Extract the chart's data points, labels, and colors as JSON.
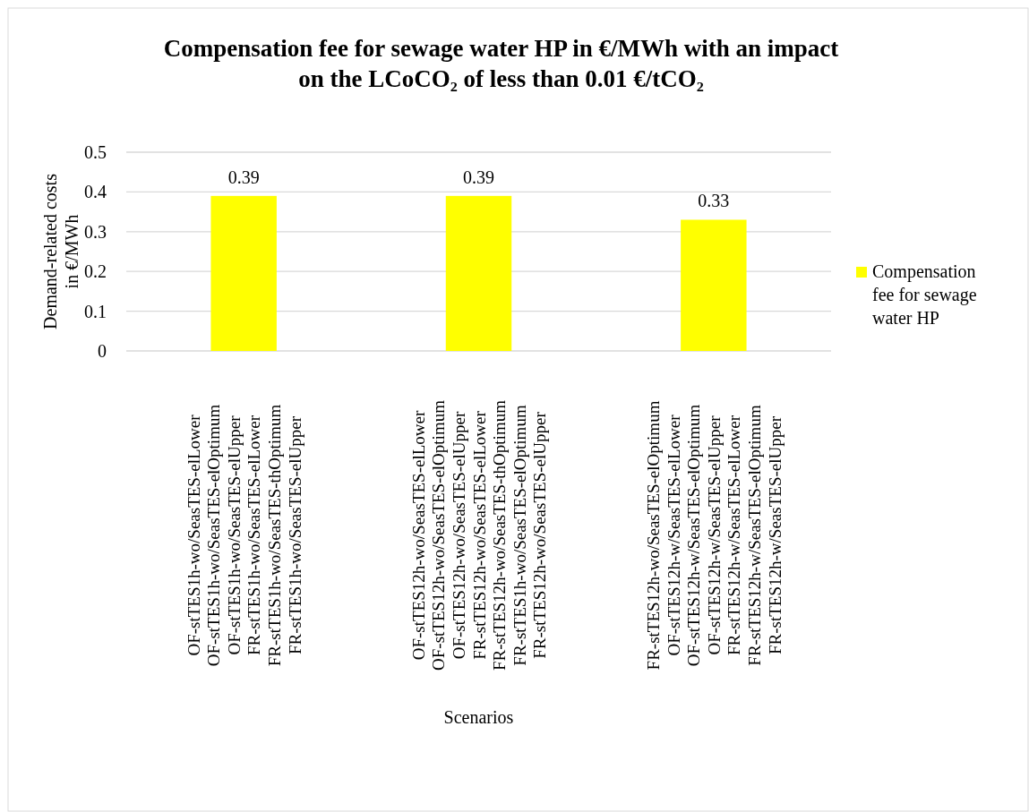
{
  "chart_data": {
    "type": "bar",
    "title": "Compensation fee for sewage water HP in €/MWh with an impact\non the LCoCO₂ of less than 0.01 €/tCO₂",
    "xlabel": "Scenarios",
    "ylabel": "Demand-related costs\nin €/MWh",
    "categories": [
      "OF-stTES1h-wo/SeasTES-elLower\nOF-stTES1h-wo/SeasTES-elOptimum\nOF-stTES1h-wo/SeasTES-elUpper\nFR-stTES1h-wo/SeasTES-elLower\nFR-stTES1h-wo/SeasTES-thOptimum\nFR-stTES1h-wo/SeasTES-elUpper",
      "OF-stTES12h-wo/SeasTES-elLower\nOF-stTES12h-wo/SeasTES-elOptimum\nOF-stTES12h-wo/SeasTES-elUpper\nFR-stTES12h-wo/SeasTES-elLower\nFR-stTES12h-wo/SeasTES-thOptimum\nFR-stTES1h-wo/SeasTES-elOptimum\nFR-stTES12h-wo/SeasTES-elUpper",
      "FR-stTES12h-wo/SeasTES-elOptimum\nOF-stTES12h-w/SeasTES-elLower\nOF-stTES12h-w/SeasTES-elOptimum\nOF-stTES12h-w/SeasTES-elUpper\nFR-stTES12h-w/SeasTES-elLower\nFR-stTES12h-w/SeasTES-elOptimum\nFR-stTES12h-w/SeasTES-elUpper"
    ],
    "series": [
      {
        "name": "Compensation fee for sewage water HP",
        "color": "#ffff00",
        "values": [
          0.39,
          0.39,
          0.33
        ]
      }
    ],
    "ylim": [
      0,
      0.5
    ],
    "yticks": [
      0,
      0.1,
      0.2,
      0.3,
      0.4,
      0.5
    ],
    "grid": "y",
    "legend": "right",
    "data_labels": true
  }
}
